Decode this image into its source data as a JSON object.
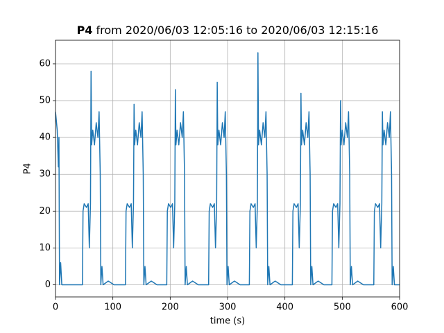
{
  "chart_data": {
    "type": "line",
    "title_prefix": "P4",
    "title": "from 2020/06/03 12:05:16 to 2020/06/03 12:15:16",
    "xlabel": "time (s)",
    "ylabel": "P4",
    "xlim": [
      0,
      600
    ],
    "ylim": [
      -3.3,
      66.4
    ],
    "xticks": [
      0,
      100,
      200,
      300,
      400,
      500,
      600
    ],
    "yticks": [
      0,
      10,
      20,
      30,
      40,
      50,
      60
    ],
    "grid": true,
    "series": [
      {
        "name": "P4",
        "color": "#1f77b4",
        "x": [
          0,
          3,
          5,
          6,
          7,
          9,
          11,
          20,
          40,
          47,
          48,
          50,
          54,
          57,
          59,
          61,
          62,
          63,
          65,
          68,
          71,
          74,
          76,
          78,
          79,
          81,
          83,
          92,
          102,
          112,
          122,
          123,
          125,
          129,
          132,
          134,
          136,
          137,
          138,
          140,
          143,
          146,
          149,
          151,
          153,
          154,
          156,
          158,
          167,
          177,
          187,
          194,
          195,
          197,
          201,
          204,
          206,
          208,
          209,
          210,
          212,
          215,
          218,
          221,
          223,
          225,
          226,
          228,
          230,
          239,
          249,
          259,
          267,
          268,
          270,
          274,
          277,
          279,
          281,
          282,
          283,
          285,
          288,
          291,
          294,
          296,
          298,
          299,
          301,
          303,
          312,
          322,
          332,
          338,
          339,
          341,
          345,
          348,
          350,
          352,
          353,
          354,
          356,
          359,
          362,
          365,
          367,
          369,
          370,
          372,
          374,
          383,
          393,
          403,
          413,
          414,
          416,
          420,
          423,
          425,
          427,
          428,
          429,
          431,
          434,
          437,
          440,
          442,
          444,
          445,
          447,
          449,
          458,
          468,
          478,
          482,
          483,
          485,
          489,
          492,
          494,
          496,
          497,
          498,
          500,
          503,
          506,
          509,
          511,
          513,
          514,
          516,
          518,
          527,
          537,
          547,
          555,
          556,
          558,
          562,
          565,
          567,
          569,
          570,
          571,
          573,
          576,
          579,
          582,
          584,
          586,
          587,
          589,
          591,
          600
        ],
        "values": [
          47,
          42,
          32,
          40,
          0,
          6,
          0,
          0,
          0,
          0,
          20,
          22,
          21,
          22,
          10,
          22,
          58,
          38,
          42,
          38,
          44,
          40,
          47,
          30,
          0,
          5,
          0,
          1,
          0,
          0,
          0,
          20,
          22,
          21,
          22,
          10,
          22,
          49,
          38,
          42,
          38,
          44,
          40,
          47,
          30,
          0,
          5,
          0,
          1,
          0,
          0,
          0,
          20,
          22,
          21,
          22,
          10,
          22,
          53,
          38,
          42,
          38,
          44,
          40,
          47,
          30,
          0,
          5,
          0,
          1,
          0,
          0,
          0,
          20,
          22,
          21,
          22,
          10,
          22,
          55,
          38,
          42,
          38,
          44,
          40,
          47,
          30,
          0,
          5,
          0,
          1,
          0,
          0,
          0,
          20,
          22,
          21,
          22,
          10,
          22,
          63,
          38,
          42,
          38,
          44,
          40,
          47,
          30,
          0,
          5,
          0,
          1,
          0,
          0,
          0,
          20,
          22,
          21,
          22,
          10,
          22,
          52,
          38,
          42,
          38,
          44,
          40,
          47,
          30,
          0,
          5,
          0,
          1,
          0,
          0,
          0,
          20,
          22,
          21,
          22,
          10,
          22,
          50,
          38,
          42,
          38,
          44,
          40,
          47,
          30,
          0,
          5,
          0,
          1,
          0,
          0,
          0,
          20,
          22,
          21,
          22,
          10,
          22,
          47,
          38,
          42,
          38,
          44,
          40,
          47,
          30,
          0,
          5,
          0,
          0
        ]
      }
    ]
  }
}
